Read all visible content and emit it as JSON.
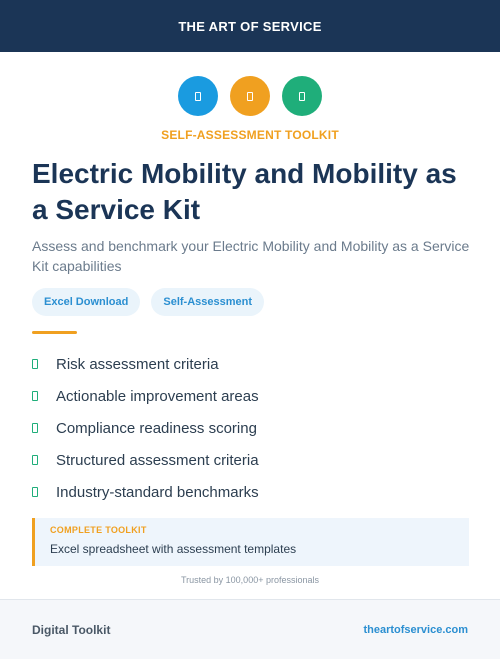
{
  "header": {
    "brand": "THE ART OF SERVICE"
  },
  "icons": [
    {
      "name": "document-icon",
      "color": "#1a9be0"
    },
    {
      "name": "clipboard-icon",
      "color": "#f0a020"
    },
    {
      "name": "checklist-icon",
      "color": "#1fae7a"
    }
  ],
  "eyebrow": "SELF-ASSESSMENT TOOLKIT",
  "title": "Electric Mobility and Mobility as a Service Kit",
  "subtitle": "Assess and benchmark your Electric Mobility and Mobility as a Service Kit capabilities",
  "tags": [
    "Excel Download",
    "Self-Assessment"
  ],
  "features": [
    "Risk assessment criteria",
    "Actionable improvement areas",
    "Compliance readiness scoring",
    "Structured assessment criteria",
    "Industry-standard benchmarks"
  ],
  "callout": {
    "label": "COMPLETE TOOLKIT",
    "text": "Excel spreadsheet with assessment templates"
  },
  "trust": "Trusted by 100,000+ professionals",
  "footer": {
    "left": "Digital Toolkit",
    "right": "theartofservice.com"
  }
}
